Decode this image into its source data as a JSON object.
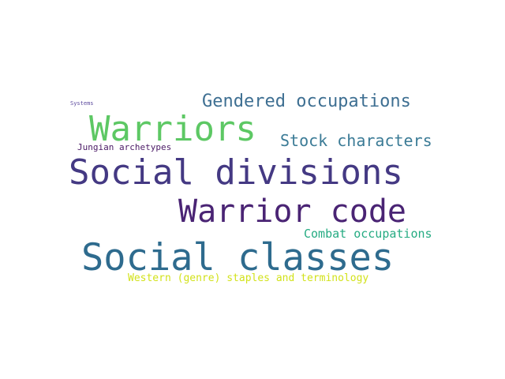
{
  "words": {
    "systems": {
      "text": "Systems",
      "color": "#5c4a9e"
    },
    "gendered_occupations": {
      "text": "Gendered occupations",
      "color": "#3e6f92"
    },
    "warriors": {
      "text": "Warriors",
      "color": "#5dc864"
    },
    "stock_characters": {
      "text": "Stock characters",
      "color": "#3b7b96"
    },
    "jungian_archetypes": {
      "text": "Jungian archetypes",
      "color": "#4b1a66"
    },
    "social_divisions": {
      "text": "Social divisions",
      "color": "#443983"
    },
    "warrior_code": {
      "text": "Warrior code",
      "color": "#4a2474"
    },
    "combat_occupations": {
      "text": "Combat occupations",
      "color": "#25ab82"
    },
    "social_classes": {
      "text": "Social classes",
      "color": "#2e6b8e"
    },
    "western_staples": {
      "text": "Western (genre) staples and terminology",
      "color": "#d2e21b"
    }
  }
}
